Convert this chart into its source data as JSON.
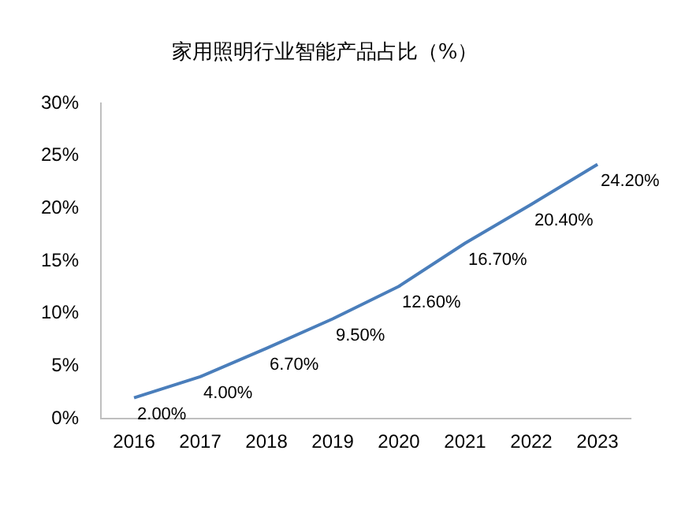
{
  "chart_data": {
    "type": "line",
    "title": "家用照明行业智能产品占比（%）",
    "categories": [
      "2016",
      "2017",
      "2018",
      "2019",
      "2020",
      "2021",
      "2022",
      "2023"
    ],
    "series": [
      {
        "color": "#4a7ebb",
        "values": [
          2.0,
          4.0,
          6.7,
          9.5,
          12.6,
          16.7,
          20.4,
          24.2
        ],
        "value_labels": [
          "2.00%",
          "4.00%",
          "6.70%",
          "9.50%",
          "12.60%",
          "16.70%",
          "20.40%",
          "24.20%"
        ]
      }
    ],
    "ylim": [
      0,
      30
    ],
    "yticks": [
      {
        "value": 0,
        "label": "0%"
      },
      {
        "value": 5,
        "label": "5%"
      },
      {
        "value": 10,
        "label": "10%"
      },
      {
        "value": 15,
        "label": "15%"
      },
      {
        "value": 20,
        "label": "20%"
      },
      {
        "value": 25,
        "label": "25%"
      },
      {
        "value": 30,
        "label": "30%"
      }
    ],
    "grid": false,
    "legend": false,
    "marker": "none",
    "line_style": "solid"
  }
}
